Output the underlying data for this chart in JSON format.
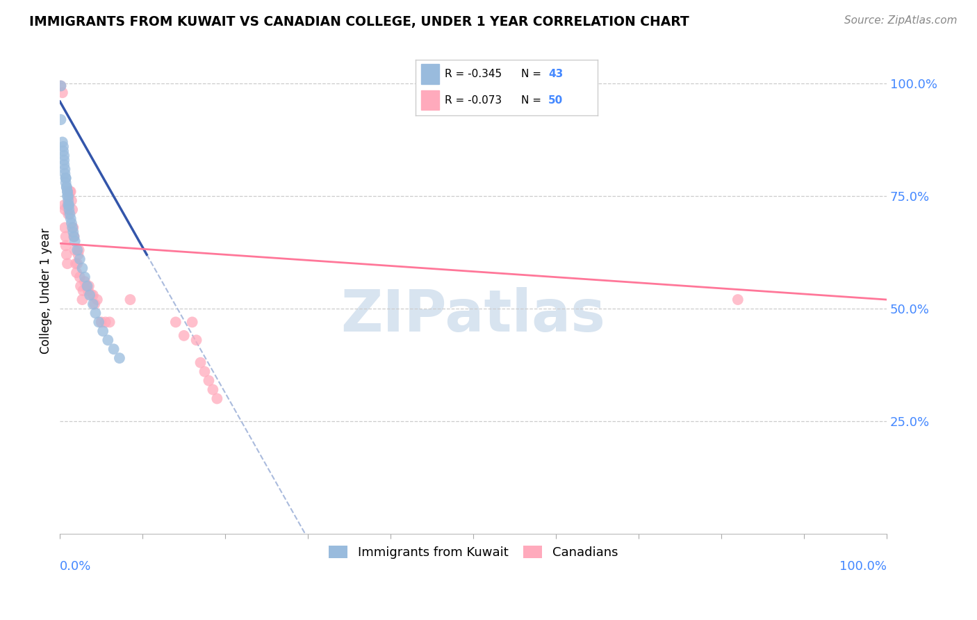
{
  "title": "IMMIGRANTS FROM KUWAIT VS CANADIAN COLLEGE, UNDER 1 YEAR CORRELATION CHART",
  "source": "Source: ZipAtlas.com",
  "ylabel": "College, Under 1 year",
  "ytick_values": [
    1.0,
    0.75,
    0.5,
    0.25
  ],
  "legend_label1": "Immigrants from Kuwait",
  "legend_label2": "Canadians",
  "R1": -0.345,
  "N1": 43,
  "R2": -0.073,
  "N2": 50,
  "blue_color": "#99BBDD",
  "pink_color": "#FFAABC",
  "blue_line_color": "#3355AA",
  "pink_line_color": "#FF7799",
  "blue_dashed_color": "#AABBDD",
  "watermark_color": "#D8E4F0",
  "blue_x": [
    0.001,
    0.001,
    0.003,
    0.004,
    0.004,
    0.005,
    0.005,
    0.005,
    0.006,
    0.006,
    0.007,
    0.007,
    0.007,
    0.008,
    0.008,
    0.009,
    0.009,
    0.009,
    0.01,
    0.01,
    0.01,
    0.011,
    0.011,
    0.012,
    0.013,
    0.014,
    0.015,
    0.016,
    0.017,
    0.018,
    0.021,
    0.024,
    0.027,
    0.03,
    0.033,
    0.036,
    0.04,
    0.043,
    0.047,
    0.052,
    0.058,
    0.065,
    0.072
  ],
  "blue_y": [
    0.995,
    0.92,
    0.87,
    0.86,
    0.85,
    0.84,
    0.83,
    0.82,
    0.81,
    0.8,
    0.79,
    0.79,
    0.78,
    0.77,
    0.77,
    0.76,
    0.76,
    0.75,
    0.75,
    0.74,
    0.73,
    0.73,
    0.72,
    0.71,
    0.7,
    0.69,
    0.68,
    0.67,
    0.66,
    0.65,
    0.63,
    0.61,
    0.59,
    0.57,
    0.55,
    0.53,
    0.51,
    0.49,
    0.47,
    0.45,
    0.43,
    0.41,
    0.39
  ],
  "pink_x": [
    0.001,
    0.003,
    0.005,
    0.006,
    0.006,
    0.007,
    0.007,
    0.008,
    0.009,
    0.009,
    0.01,
    0.011,
    0.012,
    0.013,
    0.014,
    0.015,
    0.016,
    0.017,
    0.018,
    0.019,
    0.02,
    0.021,
    0.022,
    0.023,
    0.024,
    0.025,
    0.027,
    0.028,
    0.03,
    0.032,
    0.034,
    0.035,
    0.038,
    0.04,
    0.042,
    0.045,
    0.05,
    0.055,
    0.06,
    0.085,
    0.14,
    0.15,
    0.16,
    0.165,
    0.17,
    0.175,
    0.18,
    0.185,
    0.19,
    0.82
  ],
  "pink_y": [
    0.995,
    0.98,
    0.73,
    0.72,
    0.68,
    0.66,
    0.64,
    0.62,
    0.6,
    0.73,
    0.71,
    0.75,
    0.76,
    0.76,
    0.74,
    0.72,
    0.68,
    0.66,
    0.63,
    0.6,
    0.58,
    0.6,
    0.62,
    0.63,
    0.57,
    0.55,
    0.52,
    0.54,
    0.56,
    0.55,
    0.54,
    0.55,
    0.53,
    0.53,
    0.51,
    0.52,
    0.47,
    0.47,
    0.47,
    0.52,
    0.47,
    0.44,
    0.47,
    0.43,
    0.38,
    0.36,
    0.34,
    0.32,
    0.3,
    0.52
  ],
  "blue_trend_x0": 0.0,
  "blue_trend_y0": 0.96,
  "blue_trend_x1": 0.105,
  "blue_trend_y1": 0.62,
  "pink_trend_x0": 0.0,
  "pink_trend_y0": 0.645,
  "pink_trend_x1": 1.0,
  "pink_trend_y1": 0.52,
  "xlim": [
    0.0,
    1.0
  ],
  "ylim": [
    0.0,
    1.08
  ]
}
